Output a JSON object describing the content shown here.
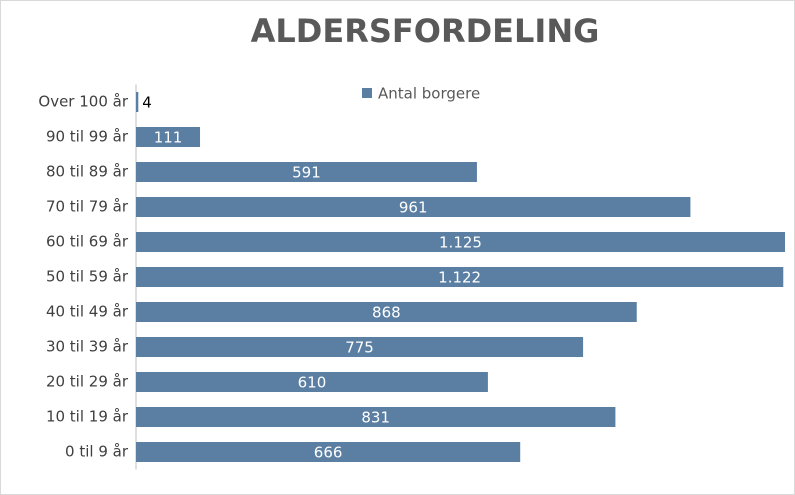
{
  "chart_data": {
    "type": "bar",
    "orientation": "horizontal",
    "title": "ALDERSFORDELING",
    "categories": [
      "Over 100 år",
      "90 til 99 år",
      "80 til 89 år",
      "70 til 79 år",
      "60 til 69 år",
      "50 til 59 år",
      "40 til 49 år",
      "30 til 39 år",
      "20 til 29 år",
      "10 til 19 år",
      "0 til 9 år"
    ],
    "series": [
      {
        "name": "Antal borgere",
        "color": "#5b7ea3",
        "values": [
          4,
          111,
          591,
          961,
          1125,
          1122,
          868,
          775,
          610,
          831,
          666
        ],
        "value_labels": [
          "4",
          "111",
          "591",
          "961",
          "1.125",
          "1.122",
          "868",
          "775",
          "610",
          "831",
          "666"
        ]
      }
    ],
    "legend": "top"
  }
}
